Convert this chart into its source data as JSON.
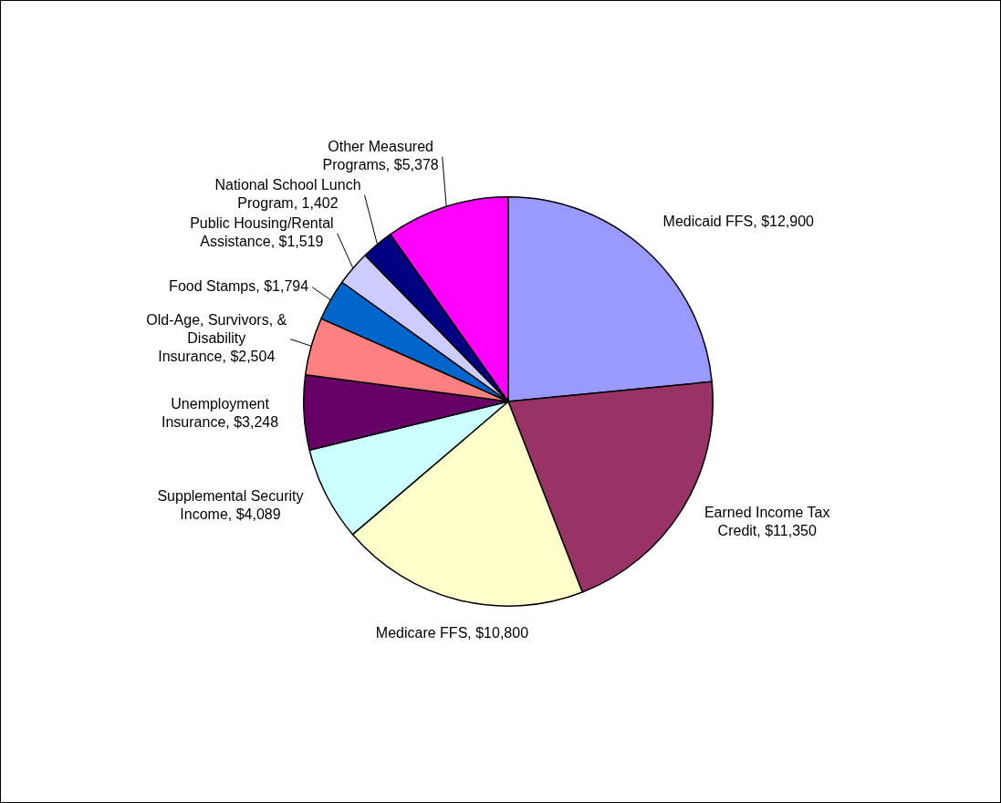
{
  "chart_data": {
    "type": "pie",
    "categories": [
      "Medicaid FFS",
      "Earned Income Tax Credit",
      "Medicare FFS",
      "Supplemental Security Income",
      "Unemployment Insurance",
      "Old-Age, Survivors, & Disability Insurance",
      "Food Stamps",
      "Public Housing/Rental Assistance",
      "National School Lunch Program",
      "Other Measured Programs"
    ],
    "values": [
      12900,
      11350,
      10800,
      4089,
      3248,
      2504,
      1794,
      1519,
      1402,
      5378
    ],
    "value_labels": [
      "$12,900",
      "$11,350",
      "$10,800",
      "$4,089",
      "$3,248",
      "$2,504",
      "$1,794",
      "$1,519",
      "1,402",
      "$5,378"
    ],
    "colors": [
      "#9999ff",
      "#993366",
      "#ffffcc",
      "#ccffff",
      "#660066",
      "#ff8080",
      "#0066cc",
      "#ccccff",
      "#000080",
      "#ff00ff"
    ],
    "legend": false
  }
}
